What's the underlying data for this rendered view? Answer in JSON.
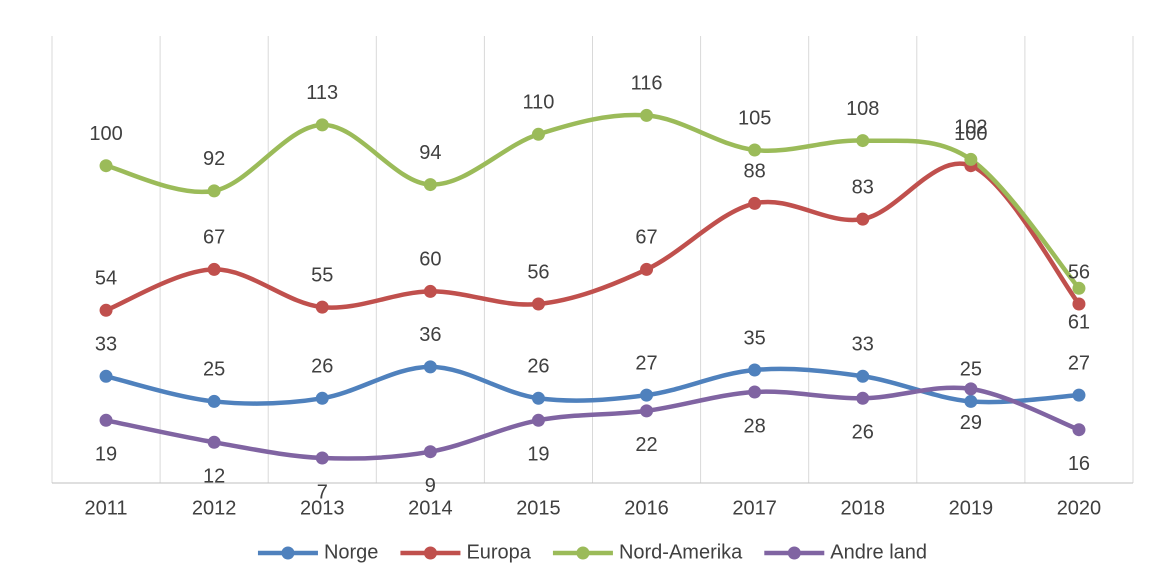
{
  "chart_data": {
    "type": "line",
    "categories": [
      "2011",
      "2012",
      "2013",
      "2014",
      "2015",
      "2016",
      "2017",
      "2018",
      "2019",
      "2020"
    ],
    "series": [
      {
        "name": "Norge",
        "color": "#4f81bd",
        "values": [
          33,
          25,
          26,
          36,
          26,
          27,
          35,
          33,
          25,
          27
        ]
      },
      {
        "name": "Europa",
        "color": "#c0504d",
        "values": [
          54,
          67,
          55,
          60,
          56,
          67,
          88,
          83,
          100,
          56
        ]
      },
      {
        "name": "Nord-Amerika",
        "color": "#9bbb59",
        "values": [
          100,
          92,
          113,
          94,
          110,
          116,
          105,
          108,
          102,
          61
        ]
      },
      {
        "name": "Andre land",
        "color": "#8064a2",
        "values": [
          19,
          12,
          7,
          9,
          19,
          22,
          28,
          26,
          29,
          16
        ]
      }
    ],
    "ylim": [
      0,
      140
    ],
    "smooth": true,
    "legend": "bottom"
  }
}
